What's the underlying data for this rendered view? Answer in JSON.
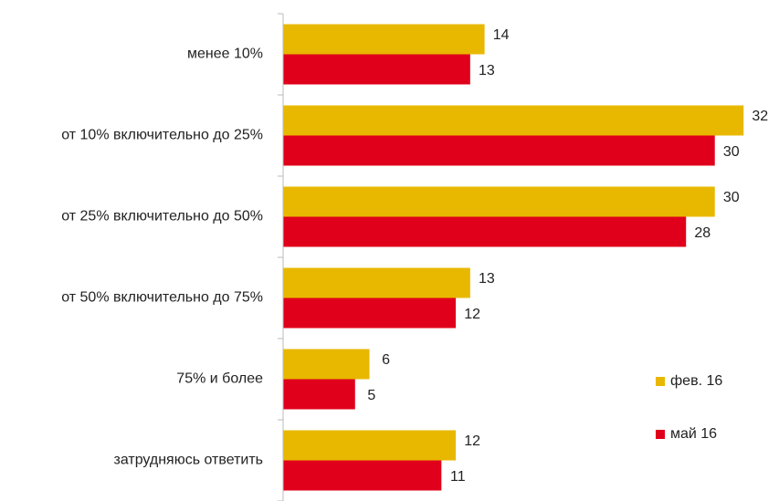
{
  "chart_data": {
    "type": "hbar",
    "categories": [
      "менее 10%",
      "от 10% включительно до 25%",
      "от 25% включительно до 50%",
      "от 50% включительно до 75%",
      "75% и более",
      "затрудняюсь ответить"
    ],
    "series": [
      {
        "name": "фев. 16",
        "color": "#e8b800",
        "values": [
          14,
          32,
          30,
          13,
          6,
          12
        ]
      },
      {
        "name": "май 16",
        "color": "#e0001b",
        "values": [
          13,
          30,
          28,
          12,
          5,
          11
        ]
      }
    ],
    "xlim": [
      0,
      33
    ],
    "legend": "right"
  }
}
